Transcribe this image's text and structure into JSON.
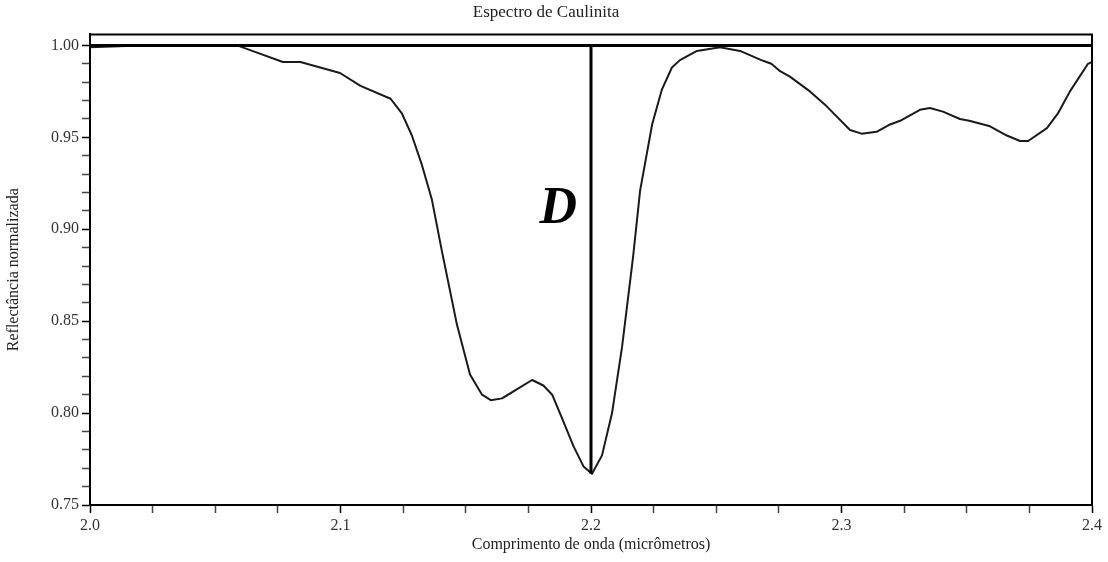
{
  "chart_data": {
    "type": "line",
    "title": "Espectro de Caulinita",
    "xlabel": "Comprimento de onda (micrômetros)",
    "ylabel": "Reflectância normalizada",
    "xlim": [
      2.0,
      2.4
    ],
    "ylim": [
      0.75,
      1.006
    ],
    "xticks": [
      {
        "value": 2.0,
        "label": "2.0"
      },
      {
        "value": 2.025,
        "label": null
      },
      {
        "value": 2.05,
        "label": null
      },
      {
        "value": 2.075,
        "label": null
      },
      {
        "value": 2.1,
        "label": "2.1"
      },
      {
        "value": 2.125,
        "label": null
      },
      {
        "value": 2.15,
        "label": null
      },
      {
        "value": 2.175,
        "label": null
      },
      {
        "value": 2.2,
        "label": "2.2"
      },
      {
        "value": 2.225,
        "label": null
      },
      {
        "value": 2.25,
        "label": null
      },
      {
        "value": 2.275,
        "label": null
      },
      {
        "value": 2.3,
        "label": "2.3"
      },
      {
        "value": 2.325,
        "label": null
      },
      {
        "value": 2.35,
        "label": null
      },
      {
        "value": 2.375,
        "label": null
      },
      {
        "value": 2.4,
        "label": "2.4"
      }
    ],
    "yticks": [
      {
        "value": 0.75,
        "label": "0.75"
      },
      {
        "value": 0.76,
        "label": null
      },
      {
        "value": 0.77,
        "label": null
      },
      {
        "value": 0.78,
        "label": null
      },
      {
        "value": 0.79,
        "label": null
      },
      {
        "value": 0.8,
        "label": "0.80"
      },
      {
        "value": 0.81,
        "label": null
      },
      {
        "value": 0.82,
        "label": null
      },
      {
        "value": 0.83,
        "label": null
      },
      {
        "value": 0.84,
        "label": null
      },
      {
        "value": 0.85,
        "label": "0.85"
      },
      {
        "value": 0.86,
        "label": null
      },
      {
        "value": 0.87,
        "label": null
      },
      {
        "value": 0.88,
        "label": null
      },
      {
        "value": 0.89,
        "label": null
      },
      {
        "value": 0.9,
        "label": "0.90"
      },
      {
        "value": 0.91,
        "label": null
      },
      {
        "value": 0.92,
        "label": null
      },
      {
        "value": 0.93,
        "label": null
      },
      {
        "value": 0.94,
        "label": null
      },
      {
        "value": 0.95,
        "label": "0.95"
      },
      {
        "value": 0.96,
        "label": null
      },
      {
        "value": 0.97,
        "label": null
      },
      {
        "value": 0.98,
        "label": null
      },
      {
        "value": 0.99,
        "label": null
      },
      {
        "value": 1.0,
        "label": "1.00"
      }
    ],
    "series": [
      {
        "color": "#1a1a1a",
        "x": [
          2.0,
          2.02,
          2.0587,
          2.077,
          2.084,
          2.0998,
          2.108,
          2.12,
          2.1245,
          2.1285,
          2.1325,
          2.1365,
          2.1405,
          2.1465,
          2.1517,
          2.1565,
          2.16,
          2.1645,
          2.1705,
          2.1765,
          2.181,
          2.1845,
          2.1885,
          2.193,
          2.197,
          2.2004,
          2.2044,
          2.2084,
          2.2124,
          2.2168,
          2.2196,
          2.2244,
          2.2283,
          2.2323,
          2.2355,
          2.2423,
          2.2515,
          2.2595,
          2.268,
          2.272,
          2.2755,
          2.2794,
          2.2874,
          2.294,
          2.3034,
          2.308,
          2.314,
          2.3194,
          2.3234,
          2.3313,
          2.3353,
          2.3405,
          2.3473,
          2.351,
          2.3593,
          2.366,
          2.3713,
          2.3745,
          2.382,
          2.3864,
          2.3912,
          2.3984,
          2.4
        ],
        "values": [
          0.999,
          1.0,
          1.0,
          0.991,
          0.991,
          0.985,
          0.978,
          0.971,
          0.963,
          0.951,
          0.935,
          0.916,
          0.888,
          0.848,
          0.821,
          0.81,
          0.807,
          0.808,
          0.813,
          0.818,
          0.815,
          0.81,
          0.797,
          0.782,
          0.771,
          0.767,
          0.777,
          0.8,
          0.836,
          0.885,
          0.921,
          0.957,
          0.976,
          0.988,
          0.992,
          0.997,
          0.999,
          0.997,
          0.992,
          0.99,
          0.986,
          0.983,
          0.975,
          0.967,
          0.954,
          0.952,
          0.953,
          0.957,
          0.959,
          0.965,
          0.966,
          0.964,
          0.96,
          0.959,
          0.956,
          0.951,
          0.948,
          0.948,
          0.955,
          0.963,
          0.975,
          0.99,
          0.991
        ]
      }
    ],
    "ref_lines": [
      {
        "axis": "y",
        "value": 1.0,
        "color": "#000000"
      },
      {
        "axis": "x",
        "value": 2.2,
        "label": "D",
        "color": "#000000"
      }
    ],
    "marker": "none",
    "line_style": "solid"
  }
}
